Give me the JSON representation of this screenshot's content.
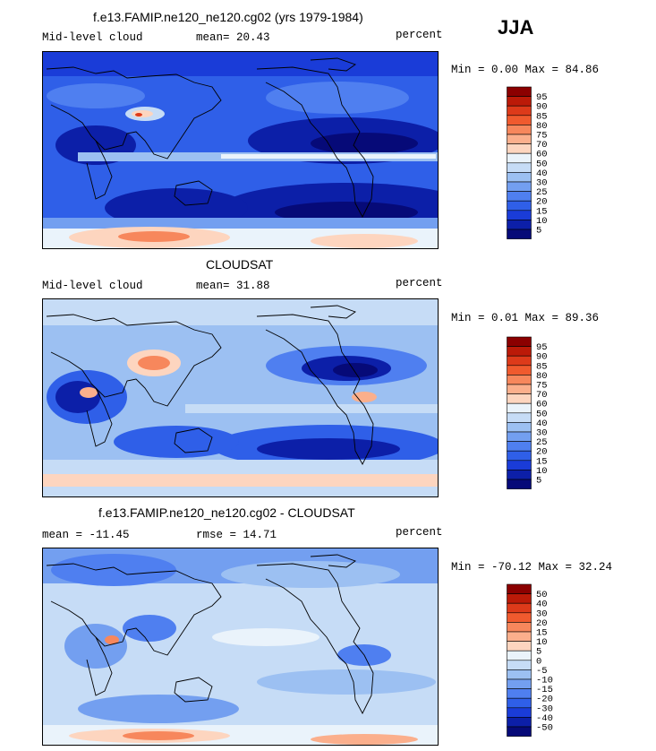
{
  "season": "JJA",
  "panels": [
    {
      "title": "f.e13.FAMIP.ne120_ne120.cg02 (yrs 1979-1984)",
      "left_label": "Mid-level cloud",
      "stat_label": "mean=  20.43",
      "units": "percent",
      "minmax": "Min =   0.00 Max =  84.86",
      "colorbar": {
        "labels": [
          "95",
          "90",
          "85",
          "80",
          "75",
          "70",
          "60",
          "50",
          "40",
          "30",
          "25",
          "20",
          "15",
          "10",
          "5"
        ],
        "colors": [
          "#8b0000",
          "#bb1a08",
          "#dd3a1a",
          "#f05a2e",
          "#f7875c",
          "#fbaf8c",
          "#fdd5bf",
          "#eaf3fb",
          "#c6dcf6",
          "#9cc0f2",
          "#739ff0",
          "#4f7ff0",
          "#2f5fe8",
          "#1a3cd8",
          "#0c1fa8",
          "#060a78"
        ]
      }
    },
    {
      "title": "CLOUDSAT",
      "left_label": "Mid-level cloud",
      "stat_label": "mean=  31.88",
      "units": "percent",
      "minmax": "Min =   0.01 Max =  89.36",
      "colorbar": {
        "labels": [
          "95",
          "90",
          "85",
          "80",
          "75",
          "70",
          "60",
          "50",
          "40",
          "30",
          "25",
          "20",
          "15",
          "10",
          "5"
        ],
        "colors": [
          "#8b0000",
          "#bb1a08",
          "#dd3a1a",
          "#f05a2e",
          "#f7875c",
          "#fbaf8c",
          "#fdd5bf",
          "#eaf3fb",
          "#c6dcf6",
          "#9cc0f2",
          "#739ff0",
          "#4f7ff0",
          "#2f5fe8",
          "#1a3cd8",
          "#0c1fa8",
          "#060a78"
        ]
      }
    },
    {
      "title": "f.e13.FAMIP.ne120_ne120.cg02 - CLOUDSAT",
      "left_label": "mean = -11.45",
      "stat_label": "rmse =  14.71",
      "units": "percent",
      "minmax": "Min = -70.12 Max =  32.24",
      "colorbar": {
        "labels": [
          "50",
          "40",
          "30",
          "20",
          "15",
          "10",
          "5",
          "0",
          "-5",
          "-10",
          "-15",
          "-20",
          "-30",
          "-40",
          "-50"
        ],
        "colors": [
          "#8b0000",
          "#bb1a08",
          "#dd3a1a",
          "#f05a2e",
          "#f7875c",
          "#fbaf8c",
          "#fdd5bf",
          "#eaf3fb",
          "#c6dcf6",
          "#9cc0f2",
          "#739ff0",
          "#4f7ff0",
          "#2f5fe8",
          "#1a3cd8",
          "#0c1fa8",
          "#060a78"
        ]
      }
    }
  ],
  "chart_data": [
    {
      "type": "heatmap",
      "title": "f.e13.FAMIP.ne120_ne120.cg02 (yrs 1979-1984)",
      "variable": "Mid-level cloud",
      "units": "percent",
      "mean": 20.43,
      "min": 0.0,
      "max": 84.86,
      "contour_levels": [
        5,
        10,
        15,
        20,
        25,
        30,
        40,
        50,
        60,
        70,
        75,
        80,
        85,
        90,
        95
      ]
    },
    {
      "type": "heatmap",
      "title": "CLOUDSAT",
      "variable": "Mid-level cloud",
      "units": "percent",
      "mean": 31.88,
      "min": 0.01,
      "max": 89.36,
      "contour_levels": [
        5,
        10,
        15,
        20,
        25,
        30,
        40,
        50,
        60,
        70,
        75,
        80,
        85,
        90,
        95
      ]
    },
    {
      "type": "heatmap",
      "title": "f.e13.FAMIP.ne120_ne120.cg02 - CLOUDSAT",
      "units": "percent",
      "mean": -11.45,
      "rmse": 14.71,
      "min": -70.12,
      "max": 32.24,
      "contour_levels": [
        -50,
        -40,
        -30,
        -20,
        -15,
        -10,
        -5,
        0,
        5,
        10,
        15,
        20,
        30,
        40,
        50
      ]
    }
  ]
}
